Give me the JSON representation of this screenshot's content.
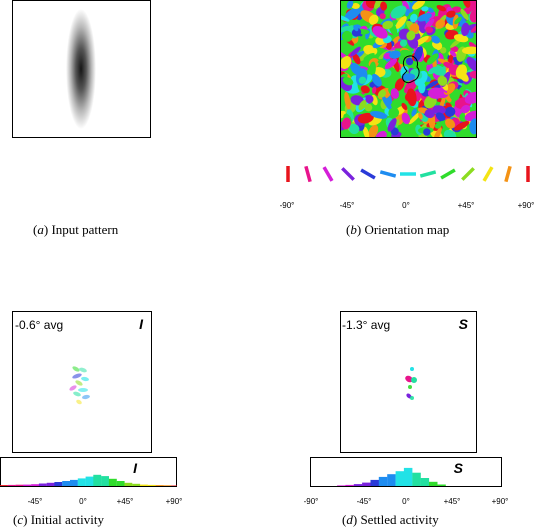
{
  "panels": {
    "a": {
      "caption_letter": "a",
      "caption_text": "Input pattern"
    },
    "b": {
      "caption_letter": "b",
      "caption_text": "Orientation map"
    },
    "c": {
      "caption_letter": "c",
      "caption_text": "Initial activity",
      "avg_text": "-0.6° avg",
      "corner_label": "I",
      "hist_label": "I"
    },
    "d": {
      "caption_letter": "d",
      "caption_text": "Settled activity",
      "avg_text": "-1.3° avg",
      "corner_label": "S",
      "hist_label": "S"
    }
  },
  "orientation_key": {
    "angles": [
      -90,
      -75,
      -60,
      -45,
      -30,
      -15,
      0,
      15,
      30,
      45,
      60,
      75,
      90
    ],
    "colors": [
      "#e8141c",
      "#e8148c",
      "#d41ed8",
      "#7a22dd",
      "#2a3ad8",
      "#1e8cf0",
      "#22e2e6",
      "#22e0a0",
      "#30dc2c",
      "#8cdc20",
      "#f4e414",
      "#f49214",
      "#e8141c"
    ]
  },
  "tick_labels": {
    "b": [
      "-90°",
      "-45°",
      "0°",
      "+45°",
      "+90°"
    ],
    "c": [
      "-45°",
      "0°",
      "+45°",
      "+90°"
    ],
    "d": [
      "-90°",
      "-45°",
      "0°",
      "+45°",
      "+90°"
    ]
  },
  "chart_data": [
    {
      "type": "bar",
      "panel": "c",
      "xlabel": "",
      "ylabel": "",
      "x": [
        -90,
        -82,
        -74,
        -66,
        -58,
        -50,
        -42,
        -34,
        -26,
        -18,
        -10,
        -2,
        6,
        14,
        22,
        30,
        38,
        46,
        54,
        62,
        70,
        78,
        86
      ],
      "values": [
        0.05,
        0.06,
        0.07,
        0.08,
        0.1,
        0.14,
        0.18,
        0.22,
        0.28,
        0.34,
        0.42,
        0.52,
        0.62,
        0.55,
        0.4,
        0.28,
        0.18,
        0.12,
        0.08,
        0.06,
        0.05,
        0.04,
        0.03
      ],
      "xlim": [
        -90,
        90
      ]
    },
    {
      "type": "bar",
      "panel": "d",
      "xlabel": "",
      "ylabel": "",
      "x": [
        -90,
        -82,
        -74,
        -66,
        -58,
        -50,
        -42,
        -34,
        -26,
        -18,
        -10,
        -2,
        6,
        14,
        22,
        30,
        38,
        46,
        54,
        62,
        70,
        78,
        86
      ],
      "values": [
        0,
        0,
        0,
        0.03,
        0.06,
        0.1,
        0.18,
        0.32,
        0.48,
        0.62,
        0.78,
        0.95,
        0.7,
        0.42,
        0.22,
        0.08,
        0,
        0,
        0,
        0,
        0,
        0,
        0
      ],
      "xlim": [
        -90,
        90
      ]
    }
  ]
}
